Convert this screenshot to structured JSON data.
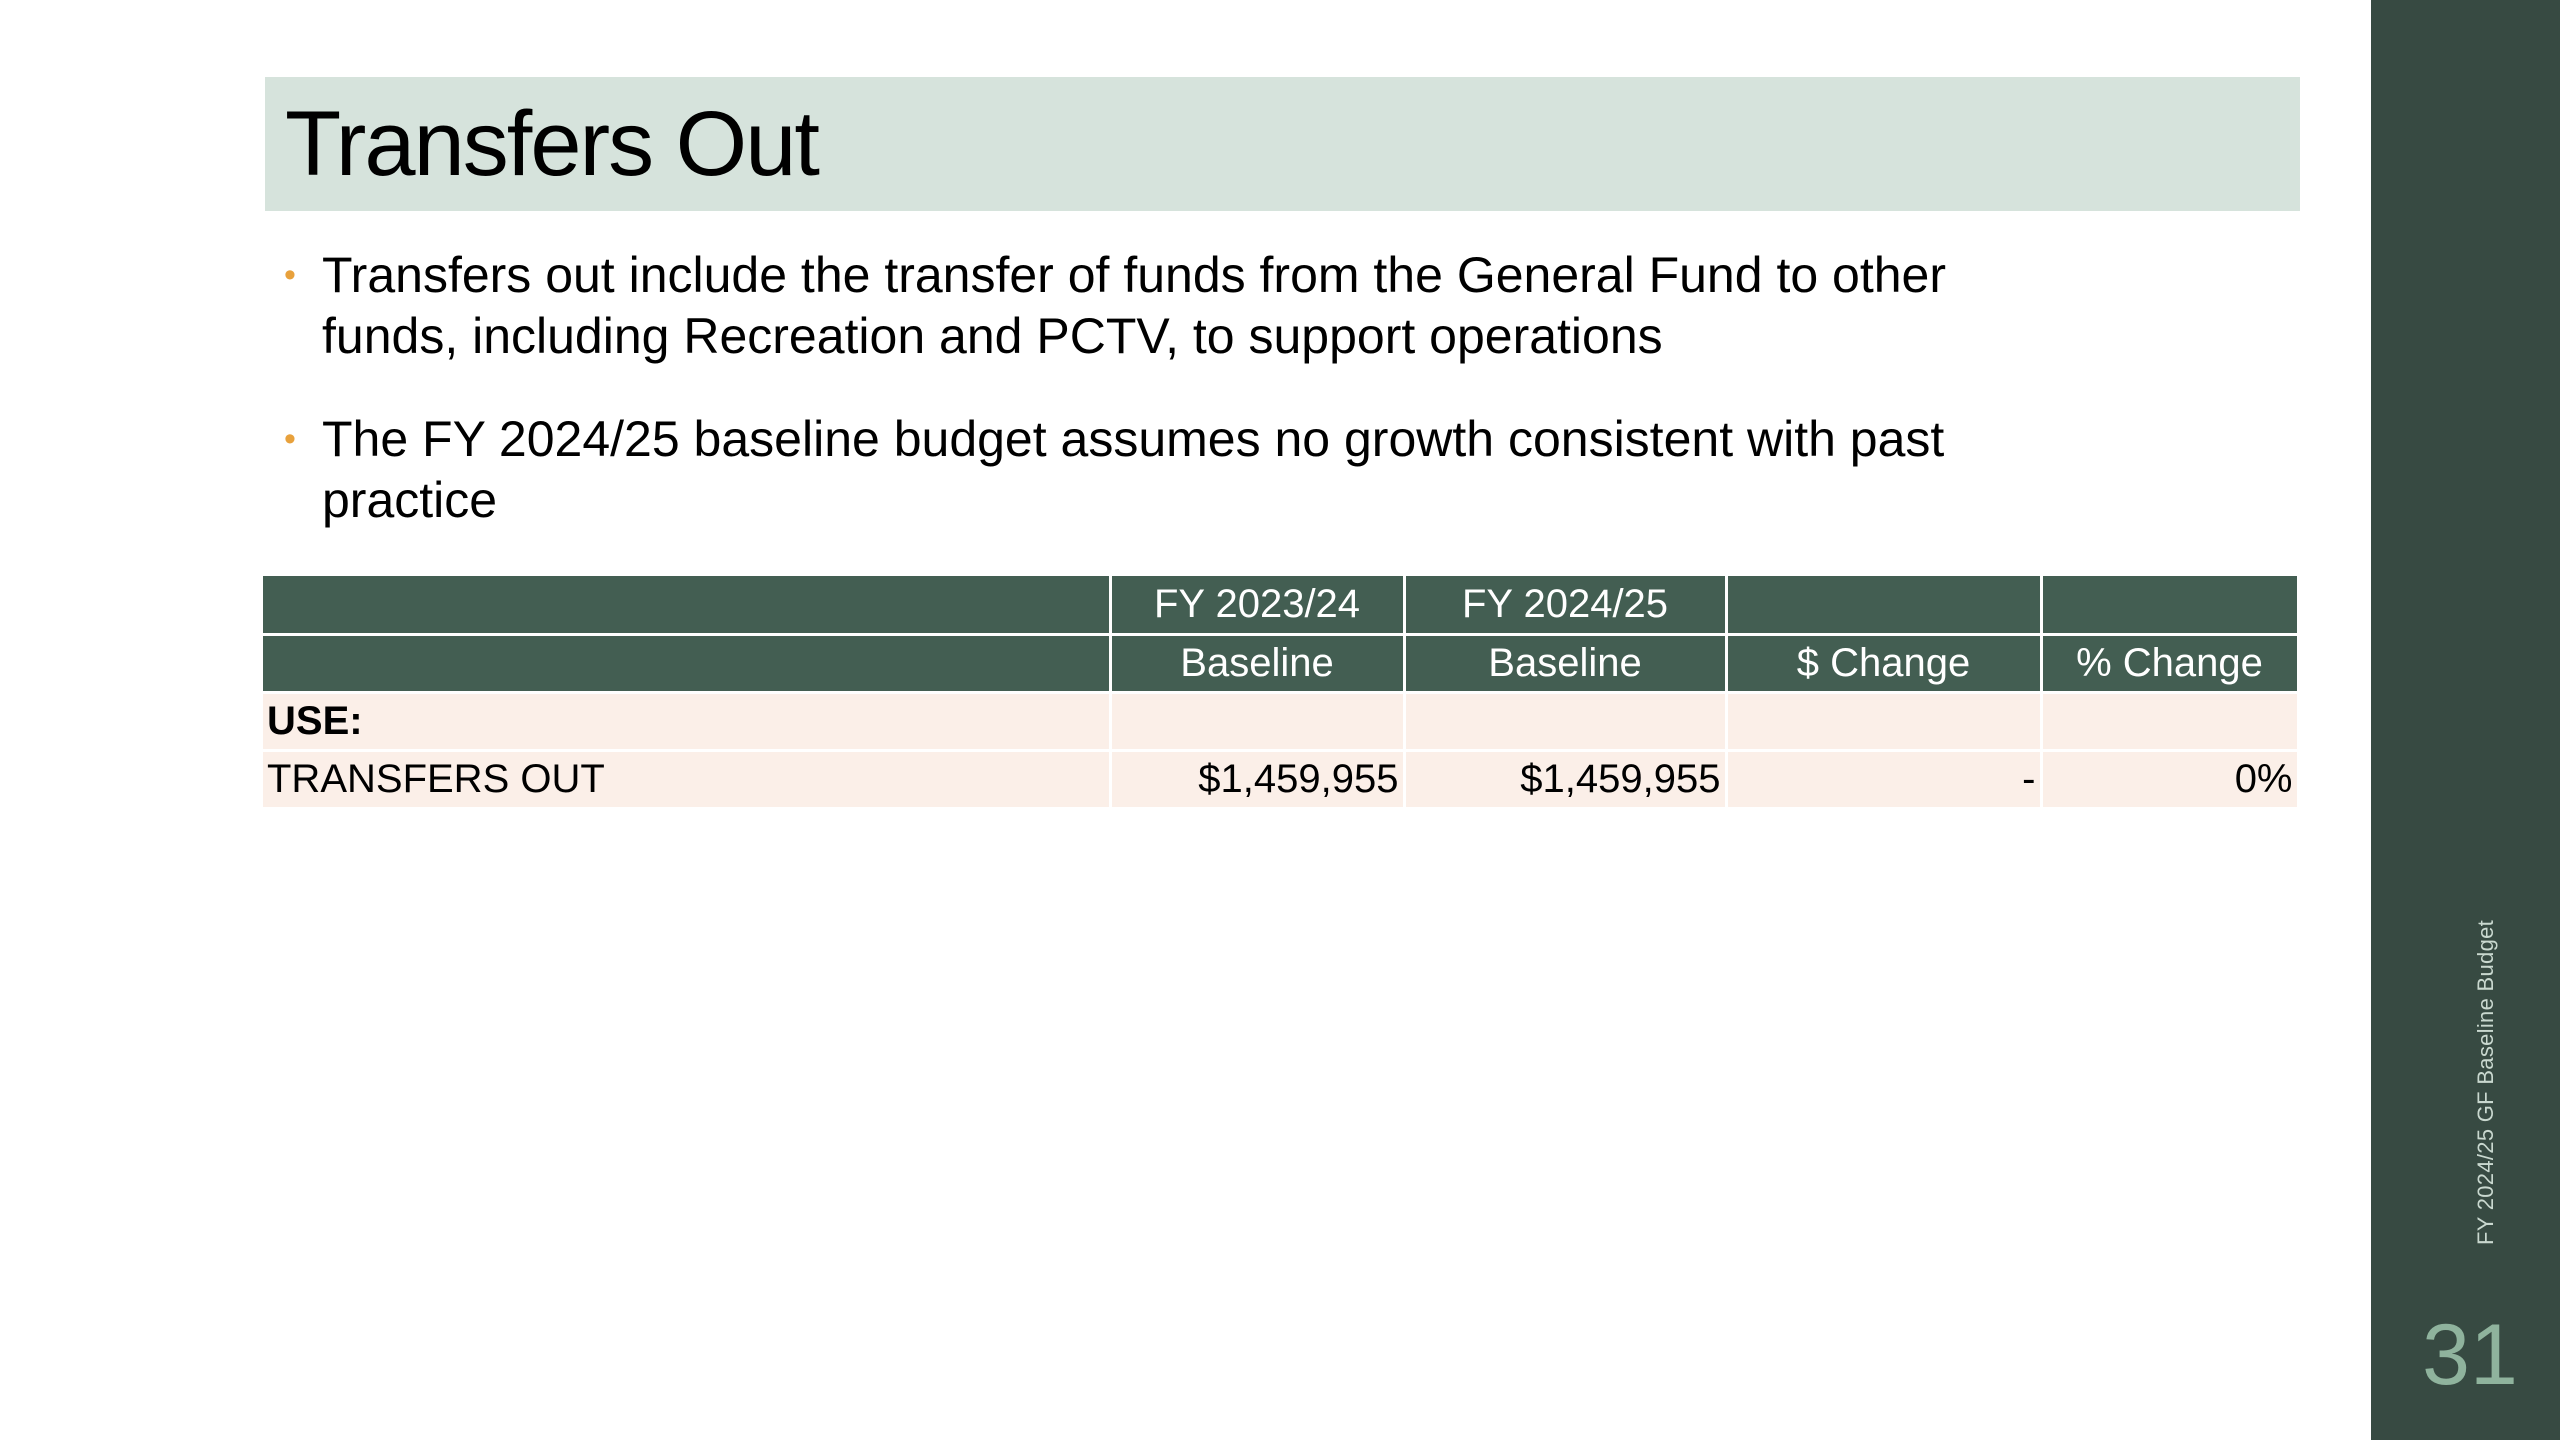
{
  "slide": {
    "title": "Transfers Out",
    "bullets": [
      "Transfers out include the transfer of funds from the General Fund to other funds, including Recreation and PCTV, to support operations",
      "The FY 2024/25 baseline budget assumes no growth consistent with past practice"
    ],
    "bullet_glyph": "•",
    "side_caption": "FY 2024/25 GF Baseline Budget",
    "page_number": "31"
  },
  "table": {
    "header_row1": [
      "",
      "FY 2023/24",
      "FY 2024/25",
      "",
      ""
    ],
    "header_row2": [
      "",
      "Baseline",
      "Baseline",
      "$ Change",
      "% Change"
    ],
    "section_label": "USE:",
    "rows": [
      {
        "label": "TRANSFERS OUT",
        "fy2324": "$1,459,955",
        "fy2425": "$1,459,955",
        "dollar_change": "-",
        "pct_change": "0%"
      }
    ]
  },
  "colors": {
    "title_band": "#d6e3dc",
    "header_fill": "#435e52",
    "row_fill": "#fbefe8",
    "sidebar": "#374a42",
    "bullet_accent": "#e8a13c",
    "page_number": "#8fb39d"
  }
}
